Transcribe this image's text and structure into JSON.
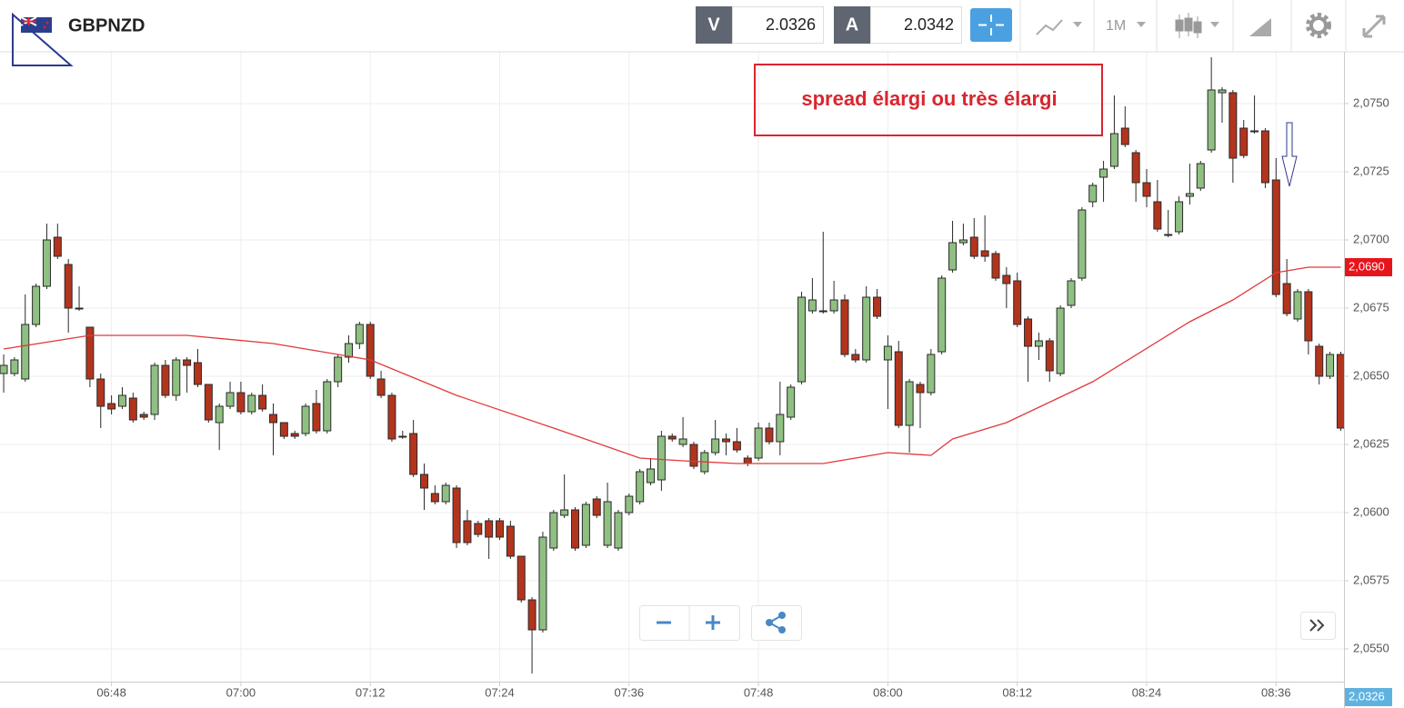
{
  "toolbar": {
    "symbol": "GBPNZD",
    "bid_label": "V",
    "bid": 2.0326,
    "ask_label": "A",
    "ask": 2.0342,
    "timeframe": "1M"
  },
  "chart_data": {
    "type": "candlestick",
    "up_color": "#8fc082",
    "down_color": "#b3341d",
    "outline_color": "#2a2a2a",
    "x": [
      398,
      399,
      400,
      401,
      402,
      403,
      404,
      405,
      406,
      407,
      408,
      409,
      410,
      411,
      412,
      413,
      414,
      415,
      416,
      417,
      418,
      419,
      420,
      421,
      422,
      423,
      424,
      425,
      426,
      427,
      428,
      429,
      430,
      431,
      432,
      433,
      434,
      435,
      436,
      437,
      438,
      439,
      440,
      441,
      442,
      443,
      444,
      445,
      446,
      447,
      448,
      449,
      450,
      451,
      452,
      453,
      454,
      455,
      456,
      457,
      458,
      459,
      460,
      461,
      462,
      463,
      464,
      465,
      466,
      467,
      468,
      469,
      470,
      471,
      472,
      473,
      474,
      475,
      476,
      477,
      478,
      479,
      480,
      481,
      482,
      483,
      484,
      485,
      486,
      487,
      488,
      489,
      490,
      491,
      492,
      493,
      494,
      495,
      496,
      497,
      498,
      499,
      500,
      501,
      502,
      503,
      504,
      505,
      506,
      507,
      508,
      509,
      510,
      511,
      512,
      513,
      514,
      515,
      516,
      517,
      518,
      519,
      520,
      521,
      522
    ],
    "open": [
      2.0651,
      2.0651,
      2.0649,
      2.0669,
      2.0683,
      2.0701,
      2.0691,
      2.0675,
      2.0668,
      2.0649,
      2.064,
      2.0639,
      2.0642,
      2.0636,
      2.0636,
      2.0654,
      2.0643,
      2.0656,
      2.0655,
      2.0647,
      2.0633,
      2.0639,
      2.0644,
      2.0637,
      2.0643,
      2.0636,
      2.0633,
      2.0629,
      2.0629,
      2.064,
      2.063,
      2.0648,
      2.0657,
      2.0662,
      2.0669,
      2.0649,
      2.0643,
      2.0628,
      2.0629,
      2.0614,
      2.0607,
      2.0604,
      2.0609,
      2.0597,
      2.0596,
      2.0597,
      2.0597,
      2.0595,
      2.0584,
      2.0568,
      2.0557,
      2.0587,
      2.0599,
      2.0601,
      2.0588,
      2.0605,
      2.0588,
      2.0587,
      2.06,
      2.0604,
      2.0611,
      2.0612,
      2.0628,
      2.0625,
      2.0625,
      2.0615,
      2.0622,
      2.0627,
      2.0626,
      2.062,
      2.062,
      2.0631,
      2.0626,
      2.0635,
      2.0648,
      2.0674,
      2.0674,
      2.0674,
      2.0678,
      2.0658,
      2.0656,
      2.0679,
      2.0656,
      2.0659,
      2.0632,
      2.0647,
      2.0644,
      2.0659,
      2.0689,
      2.0699,
      2.0701,
      2.0696,
      2.0695,
      2.0687,
      2.0685,
      2.0671,
      2.0661,
      2.0663,
      2.0651,
      2.0676,
      2.0686,
      2.0714,
      2.0723,
      2.0727,
      2.0741,
      2.0732,
      2.0721,
      2.0714,
      2.0702,
      2.0703,
      2.0716,
      2.0719,
      2.0733,
      2.0754,
      2.0754,
      2.0741,
      2.074,
      2.074,
      2.0722,
      2.0684,
      2.0671,
      2.0681,
      2.0661,
      2.065,
      2.0658
    ],
    "high": [
      2.0658,
      2.0657,
      2.068,
      2.0684,
      2.0706,
      2.0706,
      2.0693,
      2.0683,
      2.0668,
      2.0651,
      2.0643,
      2.0646,
      2.0644,
      2.0637,
      2.0655,
      2.0656,
      2.0657,
      2.0657,
      2.066,
      2.0647,
      2.064,
      2.0648,
      2.0648,
      2.0644,
      2.0647,
      2.064,
      2.0633,
      2.063,
      2.064,
      2.0645,
      2.0649,
      2.0658,
      2.0665,
      2.067,
      2.067,
      2.0652,
      2.0644,
      2.063,
      2.0634,
      2.0618,
      2.061,
      2.0611,
      2.061,
      2.0601,
      2.0597,
      2.0598,
      2.0598,
      2.0597,
      2.0584,
      2.0569,
      2.0593,
      2.0601,
      2.0614,
      2.0602,
      2.0604,
      2.0606,
      2.0611,
      2.0601,
      2.0607,
      2.0616,
      2.062,
      2.063,
      2.0629,
      2.0635,
      2.0626,
      2.0623,
      2.0634,
      2.0629,
      2.0631,
      2.0621,
      2.0633,
      2.0633,
      2.0648,
      2.0647,
      2.0681,
      2.0686,
      2.0703,
      2.0685,
      2.068,
      2.066,
      2.0683,
      2.0682,
      2.0665,
      2.0663,
      2.0649,
      2.0648,
      2.066,
      2.0687,
      2.0707,
      2.0706,
      2.0708,
      2.0709,
      2.0696,
      2.069,
      2.0688,
      2.0672,
      2.0666,
      2.0664,
      2.0676,
      2.0686,
      2.0712,
      2.0721,
      2.0729,
      2.0753,
      2.0749,
      2.0733,
      2.0726,
      2.0722,
      2.0711,
      2.0716,
      2.0728,
      2.0729,
      2.0767,
      2.0756,
      2.0755,
      2.0744,
      2.0753,
      2.0741,
      2.073,
      2.0693,
      2.0682,
      2.0682,
      2.0662,
      2.0659,
      2.0659
    ],
    "low": [
      2.0644,
      2.065,
      2.0648,
      2.0668,
      2.0682,
      2.0693,
      2.0666,
      2.0674,
      2.0646,
      2.0631,
      2.0636,
      2.0638,
      2.0633,
      2.0634,
      2.0634,
      2.0642,
      2.0641,
      2.0644,
      2.0646,
      2.0633,
      2.0623,
      2.0638,
      2.0636,
      2.0636,
      2.0637,
      2.0621,
      2.0627,
      2.0627,
      2.0628,
      2.0629,
      2.0629,
      2.0646,
      2.0655,
      2.066,
      2.0649,
      2.0642,
      2.0626,
      2.0627,
      2.0613,
      2.0601,
      2.0603,
      2.0603,
      2.0587,
      2.0588,
      2.0591,
      2.0583,
      2.059,
      2.0583,
      2.0567,
      2.0541,
      2.0556,
      2.0586,
      2.0598,
      2.0586,
      2.0587,
      2.0598,
      2.0587,
      2.0586,
      2.0599,
      2.0603,
      2.061,
      2.0608,
      2.0626,
      2.0624,
      2.0616,
      2.0614,
      2.0621,
      2.0621,
      2.0622,
      2.0617,
      2.0619,
      2.0625,
      2.0621,
      2.0634,
      2.0647,
      2.0673,
      2.0673,
      2.0673,
      2.0657,
      2.0655,
      2.0655,
      2.0671,
      2.0638,
      2.0631,
      2.0622,
      2.0631,
      2.0643,
      2.0658,
      2.0688,
      2.0698,
      2.0693,
      2.0692,
      2.0685,
      2.0675,
      2.0668,
      2.0648,
      2.0656,
      2.0648,
      2.065,
      2.0675,
      2.0685,
      2.0712,
      2.0714,
      2.0726,
      2.0734,
      2.0714,
      2.0712,
      2.0703,
      2.0701,
      2.0702,
      2.0713,
      2.0718,
      2.0732,
      2.0743,
      2.0721,
      2.073,
      2.0739,
      2.0719,
      2.0679,
      2.0672,
      2.067,
      2.0658,
      2.0647,
      2.0649,
      2.063
    ],
    "close": [
      2.0654,
      2.0656,
      2.0669,
      2.0683,
      2.07,
      2.0694,
      2.0675,
      2.0675,
      2.0649,
      2.0639,
      2.0638,
      2.0643,
      2.0634,
      2.0635,
      2.0654,
      2.0643,
      2.0656,
      2.0654,
      2.0647,
      2.0634,
      2.0639,
      2.0644,
      2.0637,
      2.0643,
      2.0638,
      2.0633,
      2.0628,
      2.0628,
      2.0639,
      2.063,
      2.0648,
      2.0657,
      2.0662,
      2.0669,
      2.065,
      2.0643,
      2.0627,
      2.0628,
      2.0614,
      2.0609,
      2.0604,
      2.061,
      2.0589,
      2.0589,
      2.0592,
      2.0591,
      2.0591,
      2.0584,
      2.0568,
      2.0557,
      2.0591,
      2.06,
      2.0601,
      2.0587,
      2.0603,
      2.0599,
      2.0604,
      2.06,
      2.0606,
      2.0615,
      2.0616,
      2.0628,
      2.0627,
      2.0627,
      2.0617,
      2.0622,
      2.0627,
      2.0626,
      2.0623,
      2.0618,
      2.0631,
      2.0626,
      2.0636,
      2.0646,
      2.0679,
      2.0678,
      2.0674,
      2.0678,
      2.0658,
      2.0656,
      2.0679,
      2.0672,
      2.0661,
      2.0632,
      2.0648,
      2.0644,
      2.0658,
      2.0686,
      2.0699,
      2.07,
      2.0694,
      2.0694,
      2.0686,
      2.0684,
      2.0669,
      2.0661,
      2.0663,
      2.0652,
      2.0675,
      2.0685,
      2.0711,
      2.072,
      2.0726,
      2.0739,
      2.0735,
      2.0721,
      2.0716,
      2.0704,
      2.0702,
      2.0714,
      2.0717,
      2.0728,
      2.0755,
      2.0755,
      2.073,
      2.0731,
      2.074,
      2.0721,
      2.068,
      2.0673,
      2.0681,
      2.0663,
      2.065,
      2.0658,
      2.0631
    ],
    "moving_average": {
      "color": "#e0393b",
      "x": [
        398,
        406,
        415,
        423,
        432,
        440,
        449,
        457,
        461,
        466,
        474,
        480,
        484,
        486,
        491,
        499,
        508,
        512,
        516,
        519,
        522
      ],
      "values": [
        2.066,
        2.0665,
        2.0665,
        2.0662,
        2.0656,
        2.0643,
        2.0631,
        2.062,
        2.0619,
        2.0618,
        2.0618,
        2.0622,
        2.0621,
        2.0627,
        2.0633,
        2.0648,
        2.067,
        2.0678,
        2.0688,
        2.069,
        2.069
      ]
    },
    "price_tags": [
      {
        "value": 2.069,
        "label": "2,0690",
        "color": "#e8141b"
      },
      {
        "value": 2.0326,
        "label": "2,0326",
        "color": "#5fb2e0"
      }
    ],
    "annotation": "spread élargi ou très élargi",
    "annotation_color": "#d9262f",
    "xlim": [
      397.66,
      522.3
    ],
    "xticks": [
      {
        "value": 408,
        "label": "06:48"
      },
      {
        "value": 420,
        "label": "07:00"
      },
      {
        "value": 432,
        "label": "07:12"
      },
      {
        "value": 444,
        "label": "07:24"
      },
      {
        "value": 456,
        "label": "07:36"
      },
      {
        "value": 468,
        "label": "07:48"
      },
      {
        "value": 480,
        "label": "08:00"
      },
      {
        "value": 492,
        "label": "08:12"
      },
      {
        "value": 504,
        "label": "08:24"
      },
      {
        "value": 516,
        "label": "08:36"
      }
    ],
    "ylim": [
      2.0538,
      2.0769
    ],
    "yticks": [
      {
        "value": 2.055,
        "label": "2,0550"
      },
      {
        "value": 2.0575,
        "label": "2,0575"
      },
      {
        "value": 2.06,
        "label": "2,0600"
      },
      {
        "value": 2.0625,
        "label": "2,0625"
      },
      {
        "value": 2.065,
        "label": "2,0650"
      },
      {
        "value": 2.0675,
        "label": "2,0675"
      },
      {
        "value": 2.07,
        "label": "2,0700"
      },
      {
        "value": 2.0725,
        "label": "2,0725"
      },
      {
        "value": 2.075,
        "label": "2,0750"
      }
    ],
    "grid": true
  }
}
